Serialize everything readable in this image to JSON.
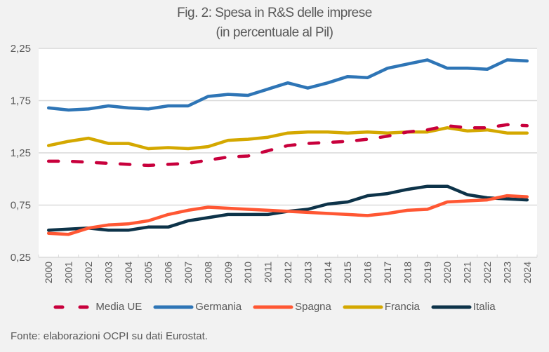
{
  "chart_data": {
    "type": "line",
    "title": "Fig. 2: Spesa in R&S delle imprese",
    "subtitle": "(in percentuale al Pil)",
    "xlabel": "",
    "ylabel": "",
    "ylim": [
      0.25,
      2.25
    ],
    "yticks": [
      0.25,
      0.75,
      1.25,
      1.75,
      2.25
    ],
    "ytick_labels": [
      "0,25",
      "0,75",
      "1,25",
      "1,75",
      "2,25"
    ],
    "grid": true,
    "legend_position": "bottom",
    "categories": [
      "2000",
      "2001",
      "2002",
      "2003",
      "2004",
      "2005",
      "2006",
      "2007",
      "2008",
      "2009",
      "2010",
      "2011",
      "2012",
      "2013",
      "2014",
      "2015",
      "2016",
      "2017",
      "2018",
      "2019",
      "2020",
      "2021",
      "2022",
      "2023",
      "2024"
    ],
    "series": [
      {
        "name": "Media UE",
        "color": "#c8003c",
        "dash": true,
        "values": [
          1.17,
          1.17,
          1.16,
          1.15,
          1.14,
          1.13,
          1.14,
          1.15,
          1.18,
          1.21,
          1.22,
          1.27,
          1.32,
          1.34,
          1.35,
          1.36,
          1.38,
          1.41,
          1.45,
          1.47,
          1.51,
          1.49,
          1.49,
          1.52,
          1.51
        ]
      },
      {
        "name": "Germania",
        "color": "#2e75b6",
        "dash": false,
        "values": [
          1.68,
          1.66,
          1.67,
          1.7,
          1.68,
          1.67,
          1.7,
          1.7,
          1.79,
          1.81,
          1.8,
          1.86,
          1.92,
          1.87,
          1.92,
          1.98,
          1.97,
          2.06,
          2.1,
          2.14,
          2.06,
          2.06,
          2.05,
          2.14,
          2.13
        ]
      },
      {
        "name": "Spagna",
        "color": "#ff5733",
        "dash": false,
        "values": [
          0.48,
          0.47,
          0.53,
          0.56,
          0.57,
          0.6,
          0.66,
          0.7,
          0.73,
          0.72,
          0.71,
          0.7,
          0.69,
          0.68,
          0.67,
          0.66,
          0.65,
          0.67,
          0.7,
          0.71,
          0.78,
          0.79,
          0.8,
          0.84,
          0.83
        ]
      },
      {
        "name": "Francia",
        "color": "#d4a800",
        "dash": false,
        "values": [
          1.32,
          1.36,
          1.39,
          1.34,
          1.34,
          1.29,
          1.3,
          1.29,
          1.31,
          1.37,
          1.38,
          1.4,
          1.44,
          1.45,
          1.45,
          1.44,
          1.45,
          1.44,
          1.45,
          1.45,
          1.49,
          1.46,
          1.47,
          1.44,
          1.44
        ]
      },
      {
        "name": "Italia",
        "color": "#0d3349",
        "dash": false,
        "values": [
          0.51,
          0.52,
          0.53,
          0.51,
          0.51,
          0.54,
          0.54,
          0.6,
          0.63,
          0.66,
          0.66,
          0.66,
          0.69,
          0.71,
          0.76,
          0.78,
          0.84,
          0.86,
          0.9,
          0.93,
          0.93,
          0.85,
          0.82,
          0.81,
          0.8
        ]
      }
    ]
  },
  "footer": "Fonte: elaborazioni OCPI su dati Eurostat."
}
